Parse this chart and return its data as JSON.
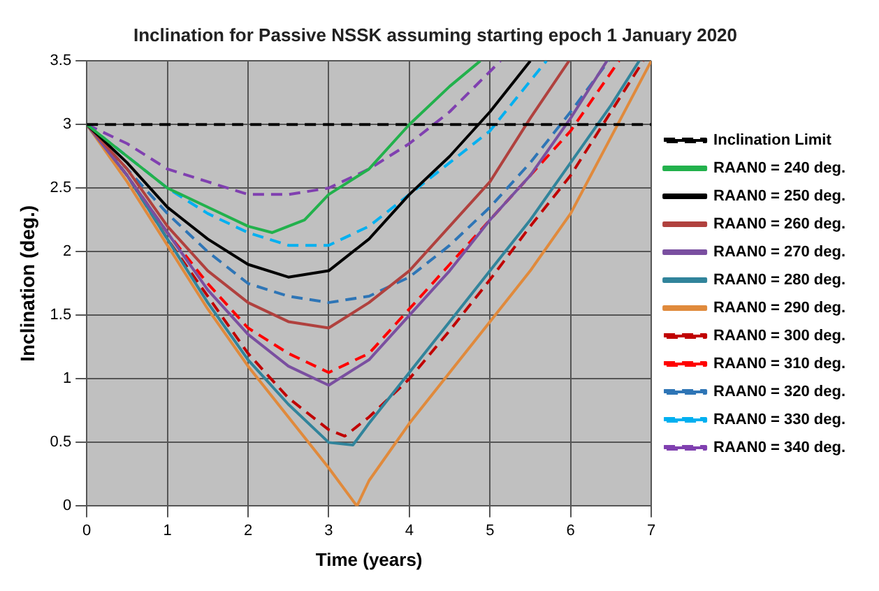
{
  "chart_data": {
    "type": "line",
    "title": "Inclination for Passive NSSK assuming starting epoch 1 January 2020",
    "xlabel": "Time (years)",
    "ylabel": "Inclination (deg.)",
    "xlim": [
      0,
      7
    ],
    "xticks": [
      0,
      1,
      2,
      3,
      4,
      5,
      6,
      7
    ],
    "ylim": [
      0,
      3.5
    ],
    "yticks": [
      0,
      0.5,
      1,
      1.5,
      2,
      2.5,
      3,
      3.5
    ],
    "grid": true,
    "legend": "right",
    "marker": "none",
    "series": [
      {
        "name": "Inclination Limit",
        "color": "#000000",
        "line_style": "dashed",
        "x": [
          0,
          7
        ],
        "values": [
          3,
          3
        ]
      },
      {
        "name": "RAAN0 = 240 deg.",
        "color": "#22b14c",
        "line_style": "solid",
        "x": [
          0,
          0.5,
          1,
          1.5,
          2,
          2.3,
          2.7,
          3,
          3.5,
          4,
          4.5,
          4.88
        ],
        "values": [
          3,
          2.75,
          2.5,
          2.35,
          2.2,
          2.15,
          2.25,
          2.45,
          2.65,
          3.0,
          3.3,
          3.5
        ]
      },
      {
        "name": "RAAN0 = 250 deg.",
        "color": "#000000",
        "line_style": "solid",
        "x": [
          0,
          0.5,
          1,
          1.5,
          2,
          2.5,
          3,
          3.5,
          4,
          4.5,
          5,
          5.5
        ],
        "values": [
          3,
          2.7,
          2.35,
          2.1,
          1.9,
          1.8,
          1.85,
          2.1,
          2.45,
          2.75,
          3.1,
          3.5
        ]
      },
      {
        "name": "RAAN0 = 260 deg.",
        "color": "#b0413e",
        "line_style": "solid",
        "x": [
          0,
          0.5,
          1,
          1.5,
          2,
          2.5,
          3,
          3.5,
          4,
          4.5,
          5,
          5.5,
          5.98
        ],
        "values": [
          3,
          2.65,
          2.2,
          1.85,
          1.6,
          1.45,
          1.4,
          1.6,
          1.85,
          2.2,
          2.55,
          3.05,
          3.5
        ]
      },
      {
        "name": "RAAN0 = 270 deg.",
        "color": "#7a4fa0",
        "line_style": "solid",
        "x": [
          0,
          0.5,
          1,
          1.5,
          2,
          2.5,
          3,
          3.5,
          4,
          4.5,
          5,
          5.5,
          6,
          6.45
        ],
        "values": [
          3,
          2.6,
          2.15,
          1.7,
          1.35,
          1.1,
          0.95,
          1.15,
          1.5,
          1.85,
          2.25,
          2.6,
          3.05,
          3.5
        ]
      },
      {
        "name": "RAAN0 = 280 deg.",
        "color": "#31849b",
        "line_style": "solid",
        "x": [
          0,
          0.5,
          1,
          1.5,
          2,
          2.5,
          3,
          3.3,
          3.5,
          4,
          4.5,
          5,
          5.5,
          6,
          6.5,
          6.85
        ],
        "values": [
          3,
          2.6,
          2.1,
          1.6,
          1.15,
          0.8,
          0.5,
          0.48,
          0.65,
          1.05,
          1.45,
          1.85,
          2.25,
          2.7,
          3.15,
          3.5
        ]
      },
      {
        "name": "RAAN0 = 290 deg.",
        "color": "#e08a3c",
        "line_style": "solid",
        "x": [
          0,
          0.5,
          1,
          1.5,
          2,
          2.5,
          3,
          3.35,
          3.5,
          4,
          4.5,
          5,
          5.5,
          6,
          6.5,
          7
        ],
        "values": [
          3,
          2.55,
          2.05,
          1.55,
          1.1,
          0.7,
          0.3,
          0,
          0.2,
          0.65,
          1.05,
          1.45,
          1.85,
          2.3,
          2.9,
          3.5
        ]
      },
      {
        "name": "RAAN0 = 300 deg.",
        "color": "#c00000",
        "line_style": "dashed",
        "x": [
          0,
          0.5,
          1,
          1.5,
          2,
          2.5,
          3,
          3.2,
          3.5,
          4,
          4.5,
          5,
          5.5,
          6,
          6.5,
          6.9
        ],
        "values": [
          3,
          2.6,
          2.1,
          1.65,
          1.2,
          0.85,
          0.6,
          0.55,
          0.7,
          1.0,
          1.38,
          1.78,
          2.2,
          2.6,
          3.1,
          3.5
        ]
      },
      {
        "name": "RAAN0 = 310 deg.",
        "color": "#ff0000",
        "line_style": "dashed",
        "x": [
          0,
          0.5,
          1,
          1.5,
          2,
          2.5,
          3,
          3.5,
          4,
          4.5,
          5,
          5.5,
          6,
          6.6
        ],
        "values": [
          3,
          2.6,
          2.15,
          1.75,
          1.4,
          1.2,
          1.05,
          1.2,
          1.55,
          1.9,
          2.25,
          2.6,
          2.95,
          3.5
        ]
      },
      {
        "name": "RAAN0 = 320 deg.",
        "color": "#2e75b6",
        "line_style": "dashed",
        "x": [
          0,
          0.5,
          1,
          1.5,
          2,
          2.5,
          3,
          3.5,
          4,
          4.5,
          5,
          5.5,
          6,
          6.47
        ],
        "values": [
          3,
          2.65,
          2.3,
          2.0,
          1.75,
          1.65,
          1.6,
          1.65,
          1.8,
          2.05,
          2.35,
          2.7,
          3.1,
          3.5
        ]
      },
      {
        "name": "RAAN0 = 330 deg.",
        "color": "#00b0f0",
        "line_style": "dashed",
        "x": [
          0,
          0.5,
          1,
          1.5,
          2,
          2.5,
          3,
          3.5,
          4,
          4.5,
          5,
          5.7
        ],
        "values": [
          3,
          2.75,
          2.5,
          2.3,
          2.15,
          2.05,
          2.05,
          2.2,
          2.45,
          2.7,
          2.95,
          3.5
        ]
      },
      {
        "name": "RAAN0 = 340 deg.",
        "color": "#8040b0",
        "line_style": "dashed",
        "x": [
          0,
          0.5,
          1,
          1.5,
          2,
          2.5,
          3,
          3.5,
          4,
          4.5,
          5.13
        ],
        "values": [
          3,
          2.85,
          2.65,
          2.55,
          2.45,
          2.45,
          2.5,
          2.65,
          2.85,
          3.1,
          3.5
        ]
      }
    ]
  }
}
